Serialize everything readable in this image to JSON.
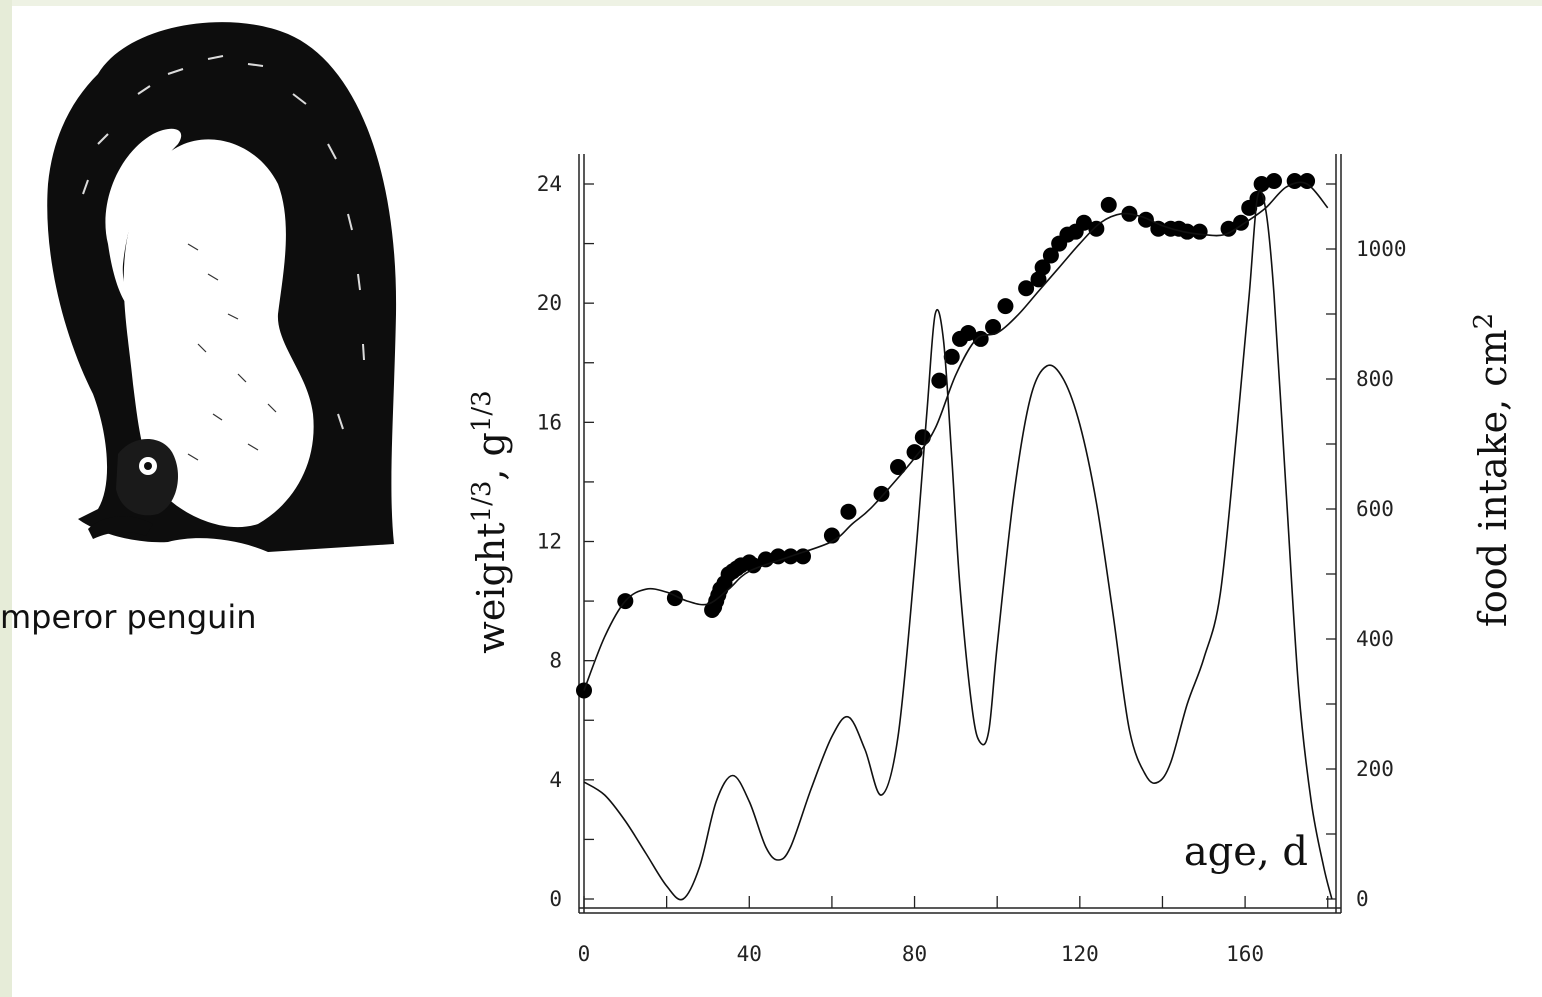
{
  "caption": "mperor penguin",
  "chart_data": {
    "type": "line",
    "title": "",
    "xlabel": "age, d",
    "ylabel_left": "weight^{1/3}, g^{1/3}",
    "ylabel_left_main": "weight",
    "ylabel_left_sup": "1/3",
    "ylabel_left_unit": ", g",
    "ylabel_left_unit_sup": "1/3",
    "ylabel_right": "food intake, cm^2",
    "ylabel_right_main": "food intake, cm",
    "ylabel_right_sup": "2",
    "xlim": [
      0,
      182
    ],
    "ylim_left": [
      0,
      24
    ],
    "ylim_right": [
      0,
      1100
    ],
    "grid": false,
    "x_ticks": [
      0,
      40,
      80,
      120,
      160
    ],
    "x_tick_labels": [
      "0",
      "40",
      "80",
      "120",
      "160"
    ],
    "y_left_ticks": [
      0,
      4,
      8,
      12,
      16,
      20,
      24
    ],
    "y_left_tick_labels": [
      "0",
      "4",
      "8",
      "12",
      "16",
      "20",
      "24"
    ],
    "y_right_ticks": [
      0,
      200,
      400,
      600,
      800,
      1000
    ],
    "y_right_tick_labels": [
      "0",
      "200",
      "400",
      "600",
      "800",
      "1000"
    ],
    "series": [
      {
        "kind": "scatter",
        "axis": "left",
        "x": [
          0,
          10,
          22,
          31,
          31.5,
          32,
          32.5,
          33,
          34,
          35,
          36,
          37,
          38,
          40,
          41,
          44,
          47,
          50,
          53,
          60,
          64,
          72,
          76,
          80,
          82,
          86,
          89,
          91,
          93,
          96,
          99,
          102,
          107,
          110,
          111,
          113,
          115,
          117,
          119,
          121,
          124,
          127,
          132,
          136,
          139,
          142,
          144,
          146,
          149,
          156,
          159,
          161,
          163,
          164,
          167,
          172,
          175
        ],
        "y": [
          7.0,
          10.0,
          10.1,
          9.7,
          9.8,
          10.0,
          10.2,
          10.4,
          10.6,
          10.9,
          11.0,
          11.1,
          11.2,
          11.3,
          11.2,
          11.4,
          11.5,
          11.5,
          11.5,
          12.2,
          13.0,
          13.6,
          14.5,
          15.0,
          15.5,
          17.4,
          18.2,
          18.8,
          19.0,
          18.8,
          19.2,
          19.9,
          20.5,
          20.8,
          21.2,
          21.6,
          22.0,
          22.3,
          22.4,
          22.7,
          22.5,
          23.3,
          23.0,
          22.8,
          22.5,
          22.5,
          22.5,
          22.4,
          22.4,
          22.5,
          22.7,
          23.2,
          23.5,
          24.0,
          24.1,
          24.1,
          24.1
        ]
      },
      {
        "kind": "smooth-line",
        "axis": "left",
        "x": [
          0,
          5,
          10,
          15,
          20,
          25,
          30,
          35,
          40,
          50,
          60,
          65,
          70,
          80,
          85,
          90,
          95,
          100,
          105,
          110,
          115,
          120,
          125,
          130,
          135,
          140,
          145,
          150,
          155,
          160,
          165,
          170,
          175,
          180
        ],
        "y": [
          7.0,
          8.8,
          10.0,
          10.4,
          10.3,
          10.0,
          9.9,
          10.4,
          11.0,
          11.5,
          12.0,
          12.6,
          13.2,
          14.8,
          15.8,
          17.6,
          18.8,
          19.0,
          19.6,
          20.4,
          21.2,
          22.0,
          22.7,
          23.0,
          22.9,
          22.6,
          22.4,
          22.3,
          22.3,
          22.7,
          23.2,
          23.9,
          24.0,
          23.2
        ]
      },
      {
        "kind": "line",
        "axis": "right",
        "x": [
          0,
          5,
          10,
          15,
          20,
          24,
          28,
          32,
          36,
          40,
          44,
          47,
          50,
          55,
          60,
          64,
          68,
          72,
          76,
          80,
          83,
          85,
          87,
          89,
          91,
          94,
          96,
          98,
          100,
          104,
          108,
          112,
          116,
          120,
          124,
          128,
          132,
          136,
          139,
          142,
          146,
          150,
          154,
          158,
          161,
          163,
          165,
          167,
          170,
          173,
          176,
          179,
          181
        ],
        "y": [
          180,
          160,
          120,
          70,
          20,
          0,
          50,
          150,
          190,
          150,
          80,
          60,
          80,
          170,
          250,
          280,
          230,
          160,
          250,
          510,
          750,
          900,
          860,
          680,
          480,
          290,
          240,
          260,
          390,
          620,
          770,
          820,
          800,
          730,
          610,
          440,
          260,
          190,
          180,
          210,
          300,
          370,
          470,
          720,
          930,
          1080,
          1060,
          930,
          620,
          320,
          150,
          50,
          0
        ]
      }
    ],
    "annotations": []
  }
}
